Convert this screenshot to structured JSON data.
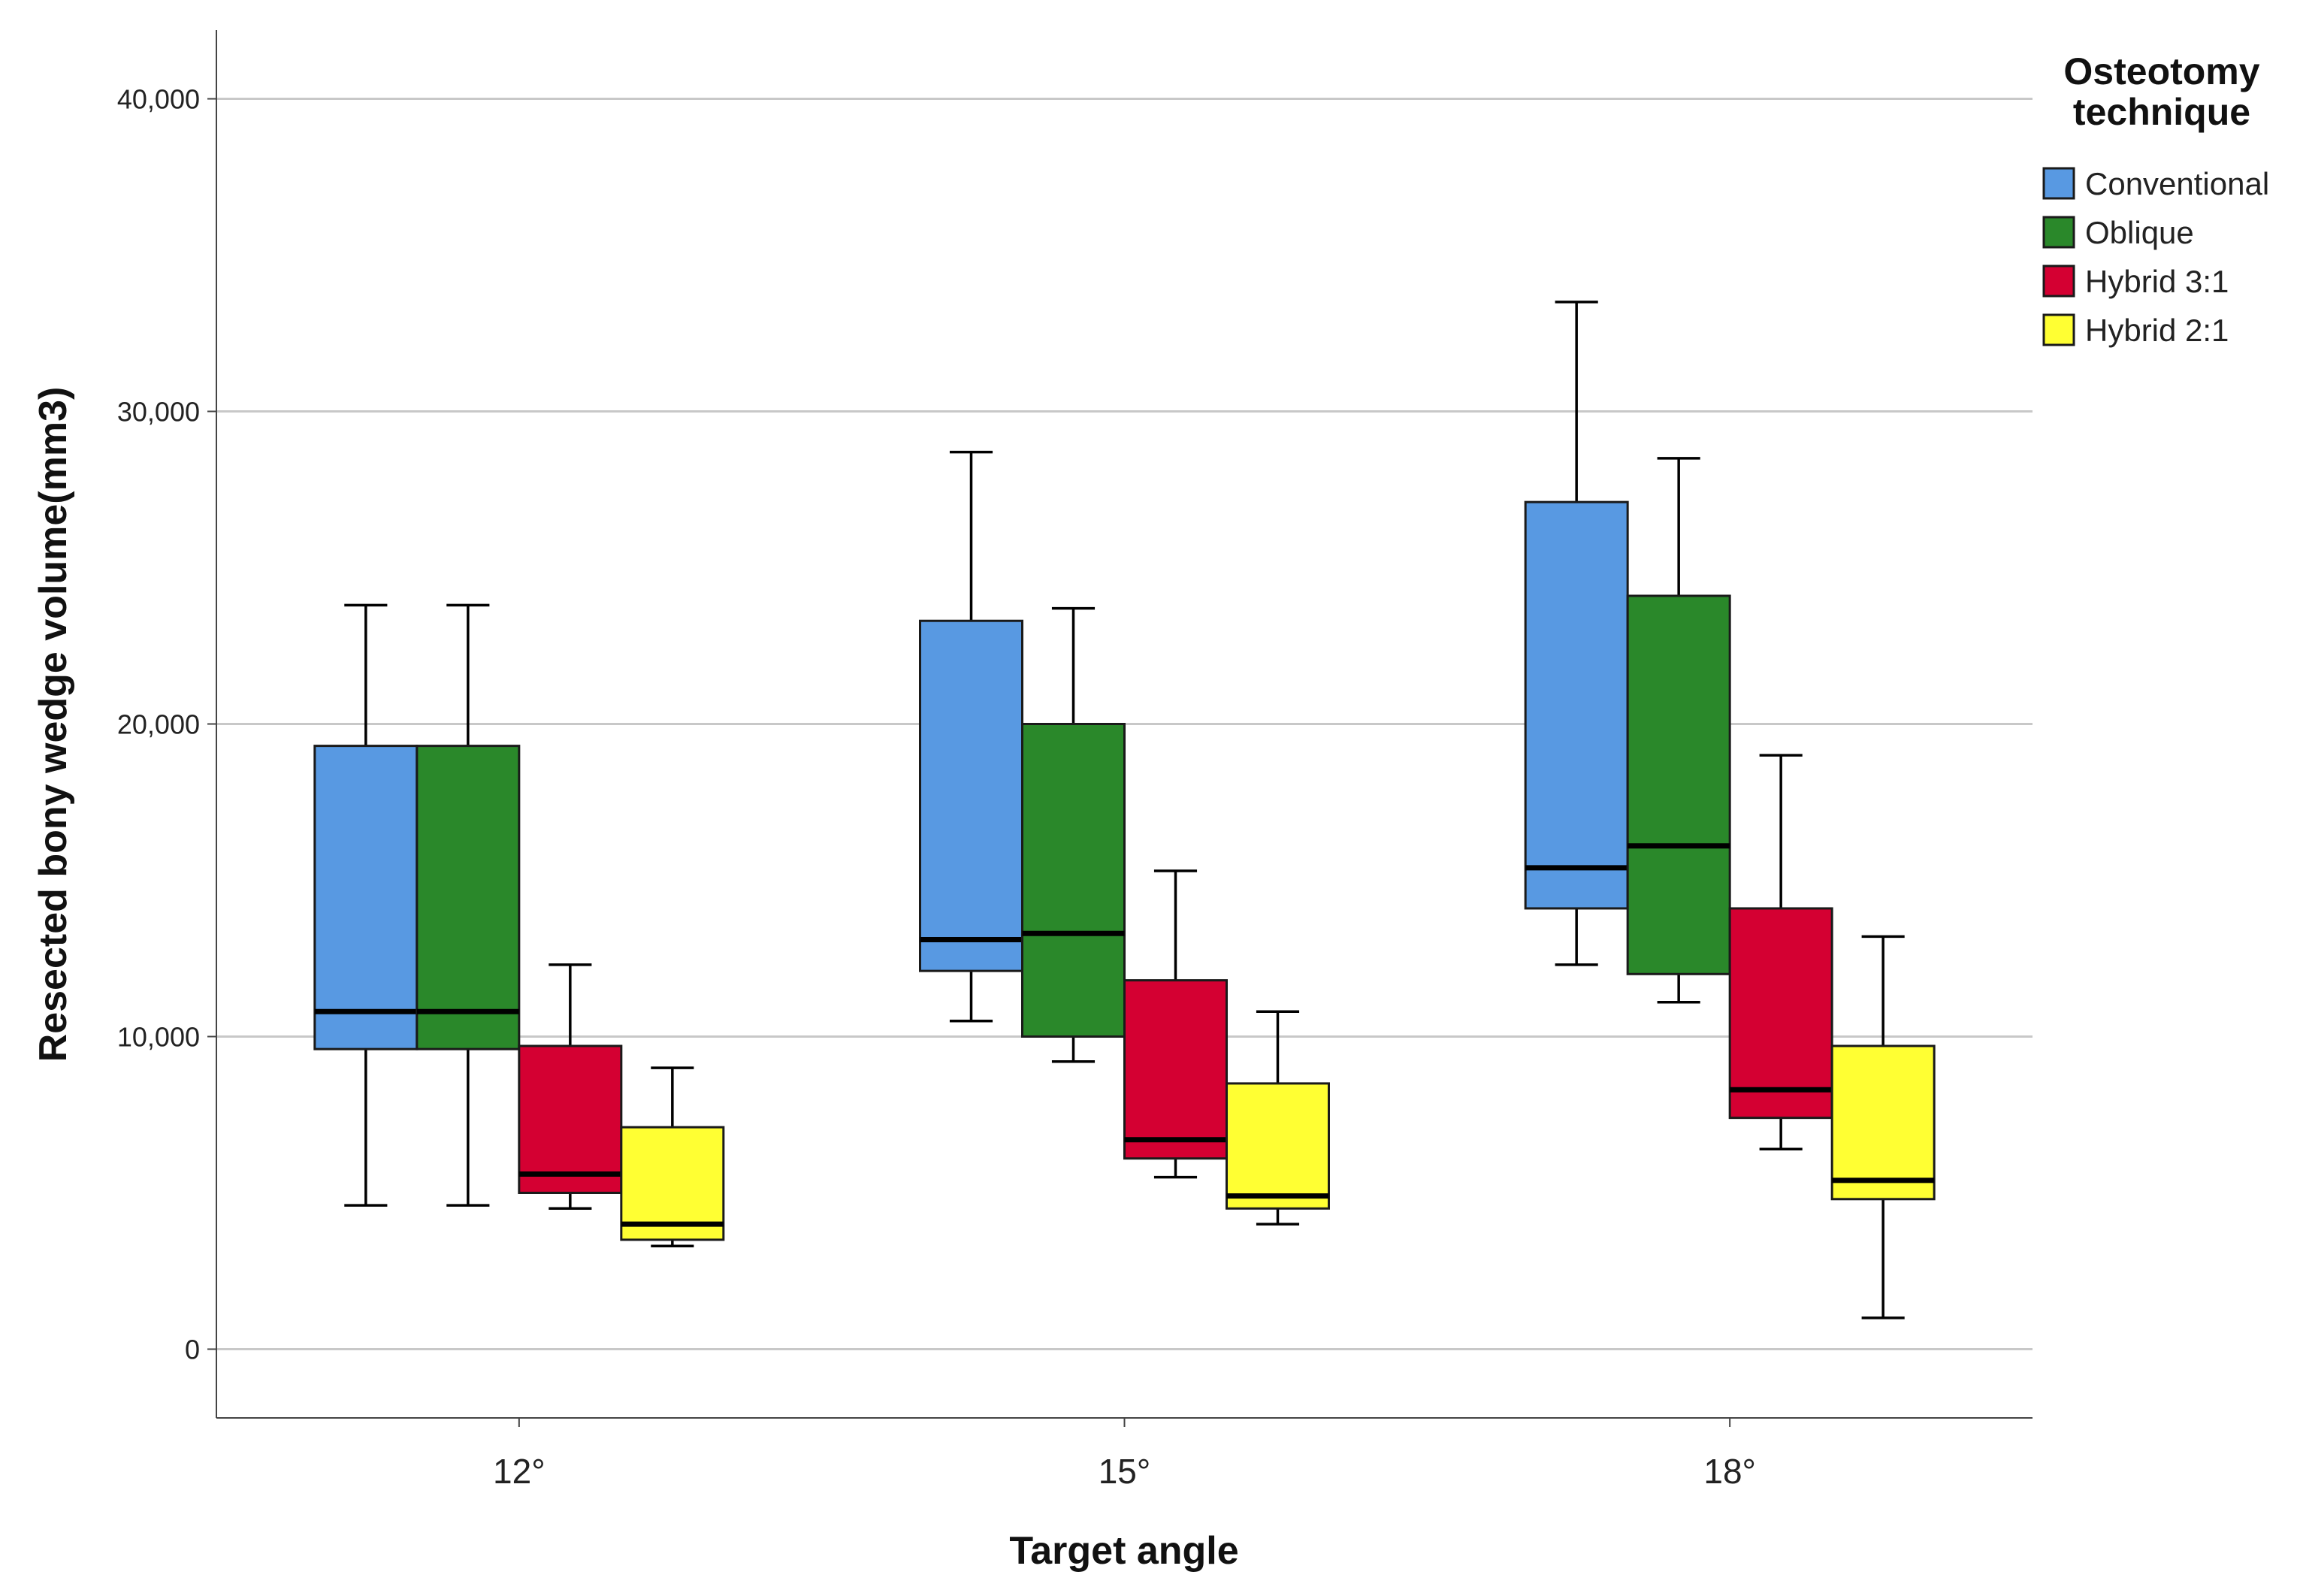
{
  "chart_data": {
    "type": "boxplot",
    "xlabel": "Target angle",
    "ylabel": "Resected bony wedge volume(mm3)",
    "categories": [
      "12°",
      "15°",
      "18°"
    ],
    "ylim": [
      -2200,
      42200
    ],
    "yticks": [
      0,
      10000,
      20000,
      30000,
      40000
    ],
    "ytick_labels": [
      "0",
      "10,000",
      "20,000",
      "30,000",
      "40,000"
    ],
    "gridlines": "horizontal",
    "legend": {
      "title_lines": [
        "Osteotomy",
        "technique"
      ],
      "position": "top-right",
      "entries": [
        "Conventional",
        "Oblique",
        "Hybrid 3:1",
        "Hybrid 2:1"
      ]
    },
    "series": [
      {
        "name": "Conventional",
        "color": "#5899E2",
        "boxes": [
          {
            "min": 4600,
            "q1": 9600,
            "median": 10800,
            "q3": 19300,
            "max": 23800
          },
          {
            "min": 10500,
            "q1": 12100,
            "median": 13100,
            "q3": 23300,
            "max": 28700
          },
          {
            "min": 12300,
            "q1": 14100,
            "median": 15400,
            "q3": 27100,
            "max": 33500
          }
        ]
      },
      {
        "name": "Oblique",
        "color": "#2A882A",
        "boxes": [
          {
            "min": 4600,
            "q1": 9600,
            "median": 10800,
            "q3": 19300,
            "max": 23800
          },
          {
            "min": 9200,
            "q1": 10000,
            "median": 13300,
            "q3": 20000,
            "max": 23700
          },
          {
            "min": 11100,
            "q1": 12000,
            "median": 16100,
            "q3": 24100,
            "max": 28500
          }
        ]
      },
      {
        "name": "Hybrid 3:1",
        "color": "#D40032",
        "boxes": [
          {
            "min": 4500,
            "q1": 5000,
            "median": 5600,
            "q3": 9700,
            "max": 12300
          },
          {
            "min": 5500,
            "q1": 6100,
            "median": 6700,
            "q3": 11800,
            "max": 15300
          },
          {
            "min": 6400,
            "q1": 7400,
            "median": 8300,
            "q3": 14100,
            "max": 19000
          }
        ]
      },
      {
        "name": "Hybrid 2:1",
        "color": "#FFFF33",
        "boxes": [
          {
            "min": 3300,
            "q1": 3500,
            "median": 4000,
            "q3": 7100,
            "max": 9000
          },
          {
            "min": 4000,
            "q1": 4500,
            "median": 4900,
            "q3": 8500,
            "max": 10800
          },
          {
            "min": 1000,
            "q1": 4800,
            "median": 5400,
            "q3": 9700,
            "max": 13200
          }
        ]
      }
    ]
  }
}
